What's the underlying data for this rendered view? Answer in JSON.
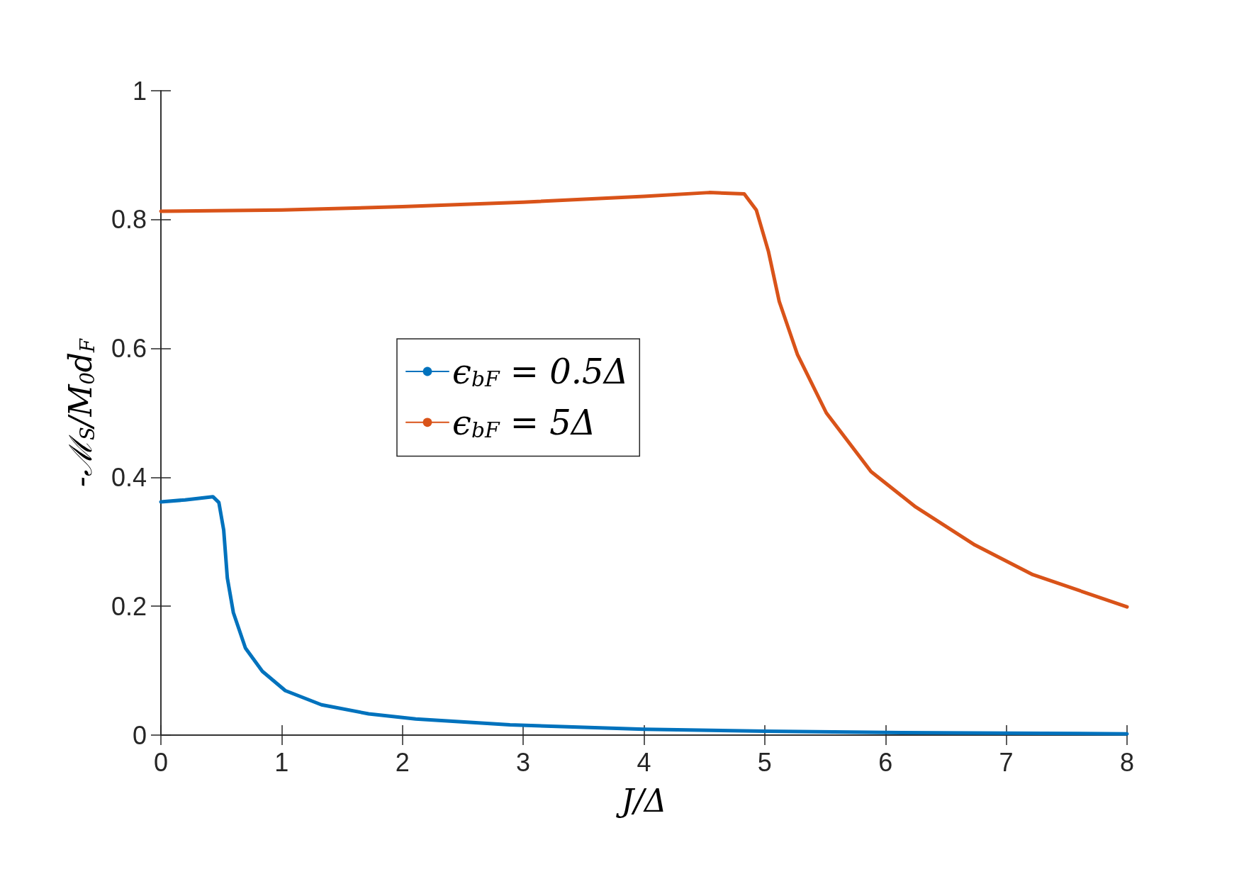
{
  "chart_data": {
    "type": "line",
    "xlabel": "J/Δ",
    "ylabel": "-ℳ$_{S}$/M$_{0}$d$_{F}$",
    "xlim": [
      0,
      8
    ],
    "xticks": [
      0,
      1,
      2,
      3,
      4,
      5,
      6,
      7,
      8
    ],
    "ylim": [
      0,
      1
    ],
    "yticks": [
      0,
      0.2,
      0.4,
      0.6,
      0.8,
      1
    ],
    "grid": false,
    "legend": "center",
    "marker": "none",
    "line_style": "solid",
    "series": [
      {
        "name": "ϵ$_{bF}$ = 0.5Δ",
        "color": "#0072bd",
        "x": [
          0,
          0.2,
          0.43,
          0.48,
          0.52,
          0.55,
          0.6,
          0.7,
          0.84,
          1.03,
          1.33,
          1.72,
          2.11,
          2.89,
          4,
          5,
          6,
          7,
          8
        ],
        "values": [
          0.362,
          0.365,
          0.37,
          0.361,
          0.318,
          0.244,
          0.19,
          0.135,
          0.099,
          0.069,
          0.047,
          0.033,
          0.025,
          0.016,
          0.009,
          0.006,
          0.004,
          0.003,
          0.002
        ]
      },
      {
        "name": "ϵ$_{bF}$ = 5Δ",
        "color": "#d95319",
        "x": [
          0,
          1,
          2,
          3,
          4,
          4.54,
          4.83,
          4.93,
          5.03,
          5.12,
          5.27,
          5.51,
          5.88,
          6.25,
          6.74,
          7.22,
          8
        ],
        "values": [
          0.813,
          0.815,
          0.82,
          0.827,
          0.836,
          0.842,
          0.84,
          0.815,
          0.751,
          0.673,
          0.591,
          0.5,
          0.409,
          0.354,
          0.295,
          0.249,
          0.199
        ]
      }
    ]
  }
}
